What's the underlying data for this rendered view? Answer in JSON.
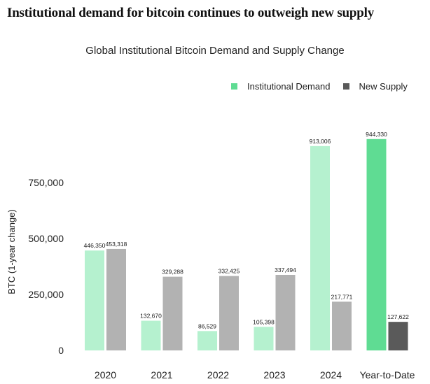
{
  "headline": "Institutional demand for bitcoin continues to outweigh new supply",
  "chart_data": {
    "type": "bar",
    "title": "Global Institutional Bitcoin Demand and Supply Change",
    "ylabel": "BTC (1-year change)",
    "xlabel": "",
    "categories": [
      "2020",
      "2021",
      "2022",
      "2023",
      "2024",
      "Year-to-Date"
    ],
    "series": [
      {
        "name": "Institutional Demand",
        "values": [
          446350,
          132670,
          86529,
          105398,
          913006,
          944330
        ],
        "labels": [
          "446,350",
          "132,670",
          "86,529",
          "105,398",
          "913,006",
          "944,330"
        ],
        "colors": [
          "#b5f1cf",
          "#b5f1cf",
          "#b5f1cf",
          "#b5f1cf",
          "#b5f1cf",
          "#5fdc93"
        ]
      },
      {
        "name": "New Supply",
        "values": [
          453318,
          329288,
          332425,
          337494,
          217771,
          127622
        ],
        "labels": [
          "453,318",
          "329,288",
          "332,425",
          "337,494",
          "217,771",
          "127,622"
        ],
        "colors": [
          "#b2b2b2",
          "#b2b2b2",
          "#b2b2b2",
          "#b2b2b2",
          "#b2b2b2",
          "#5a5a5a"
        ]
      }
    ],
    "ylim": [
      0,
      1000000
    ],
    "yticks": [
      0,
      250000,
      500000,
      750000
    ],
    "ytick_labels": [
      "0",
      "250,000",
      "500,000",
      "750,000"
    ],
    "grid": false,
    "legend_position": "top-right",
    "legend": [
      {
        "label": "Institutional Demand",
        "color": "#5fdc93"
      },
      {
        "label": "New Supply",
        "color": "#5a5a5a"
      }
    ]
  }
}
